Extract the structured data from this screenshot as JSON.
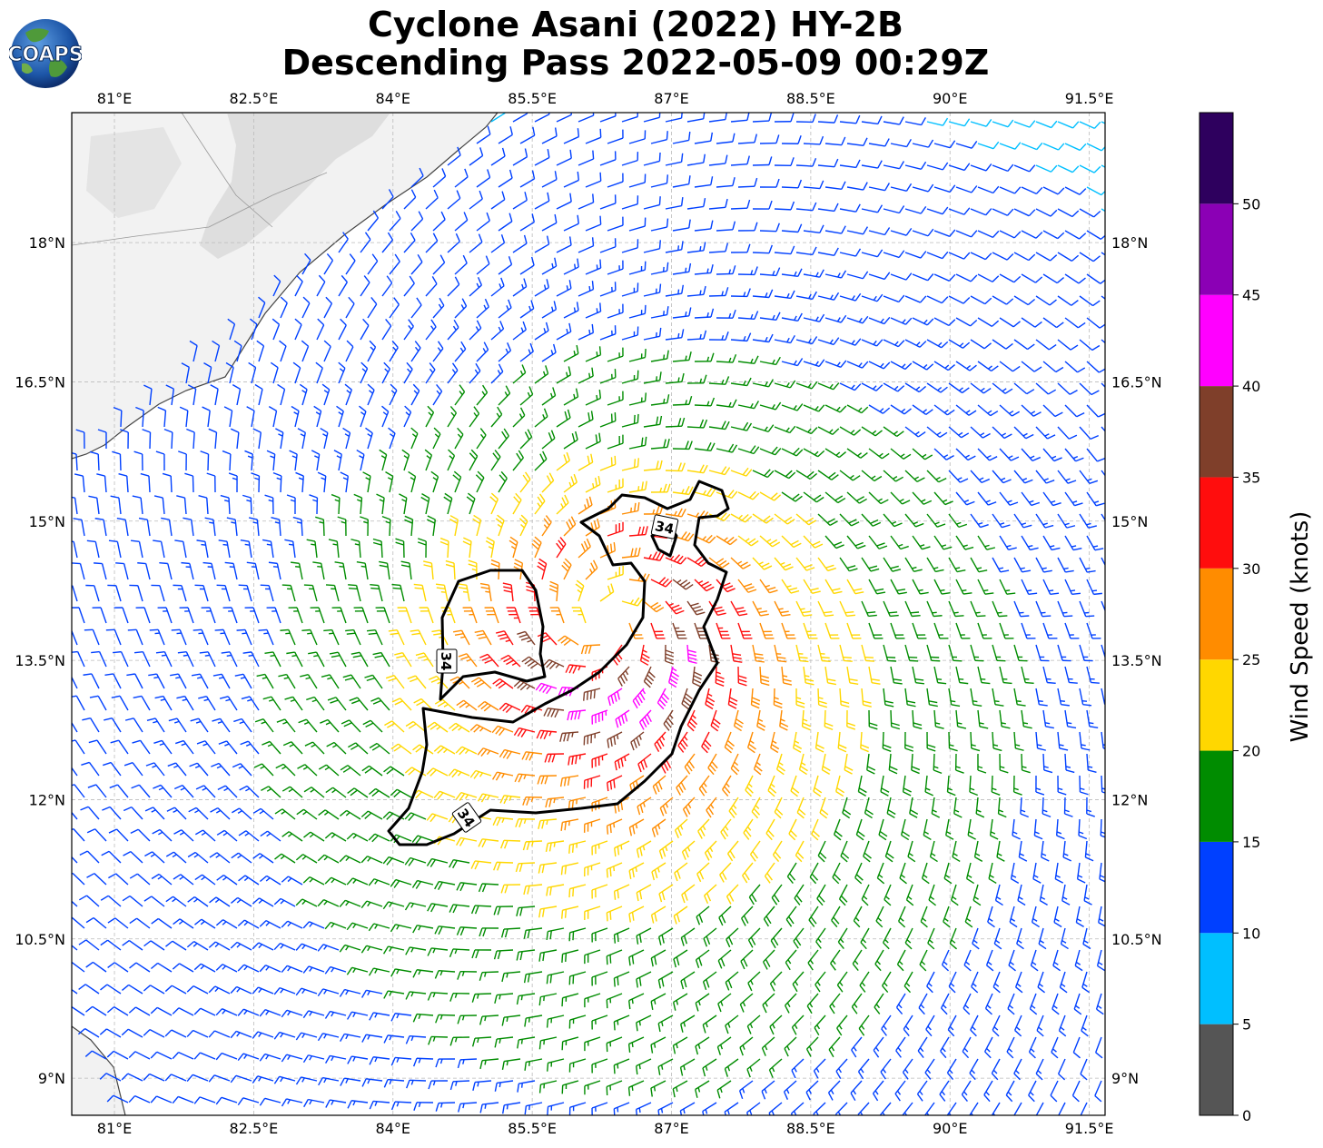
{
  "title": {
    "line1": "Cyclone Asani (2022) HY-2B",
    "line2": "Descending Pass 2022-05-09 00:29Z"
  },
  "logo": {
    "text": "COAPS"
  },
  "map": {
    "lon_ticks": [
      "81°E",
      "82.5°E",
      "84°E",
      "85.5°E",
      "87°E",
      "88.5°E",
      "90°E",
      "91.5°E"
    ],
    "lon_values": [
      81,
      82.5,
      84,
      85.5,
      87,
      88.5,
      90,
      91.5
    ],
    "lat_ticks": [
      "18°N",
      "16.5°N",
      "15°N",
      "13.5°N",
      "12°N",
      "10.5°N",
      "9°N"
    ],
    "lat_values": [
      18,
      16.5,
      15,
      13.5,
      12,
      10.5,
      9
    ],
    "lon_range": [
      80.54,
      91.67
    ],
    "lat_range": [
      8.6,
      19.4
    ],
    "center": {
      "lon": 86.3,
      "lat": 13.9
    },
    "contour_label": "34",
    "contour_labels": [
      "34",
      "34",
      "34"
    ]
  },
  "colorbar": {
    "label": "Wind Speed (knots)",
    "ticks": [
      "0",
      "5",
      "10",
      "15",
      "20",
      "25",
      "30",
      "35",
      "40",
      "45",
      "50"
    ],
    "bins": [
      {
        "min": 0,
        "max": 5,
        "color": "#555555"
      },
      {
        "min": 5,
        "max": 10,
        "color": "#00bfff"
      },
      {
        "min": 10,
        "max": 15,
        "color": "#0040ff"
      },
      {
        "min": 15,
        "max": 20,
        "color": "#008c00"
      },
      {
        "min": 20,
        "max": 25,
        "color": "#ffd700"
      },
      {
        "min": 25,
        "max": 30,
        "color": "#ff8c00"
      },
      {
        "min": 30,
        "max": 35,
        "color": "#ff0d0d"
      },
      {
        "min": 35,
        "max": 40,
        "color": "#7f3f2a"
      },
      {
        "min": 40,
        "max": 45,
        "color": "#ff00ff"
      },
      {
        "min": 45,
        "max": 50,
        "color": "#8b00b5"
      },
      {
        "min": 50,
        "max": 55,
        "color": "#2e005e"
      }
    ]
  }
}
